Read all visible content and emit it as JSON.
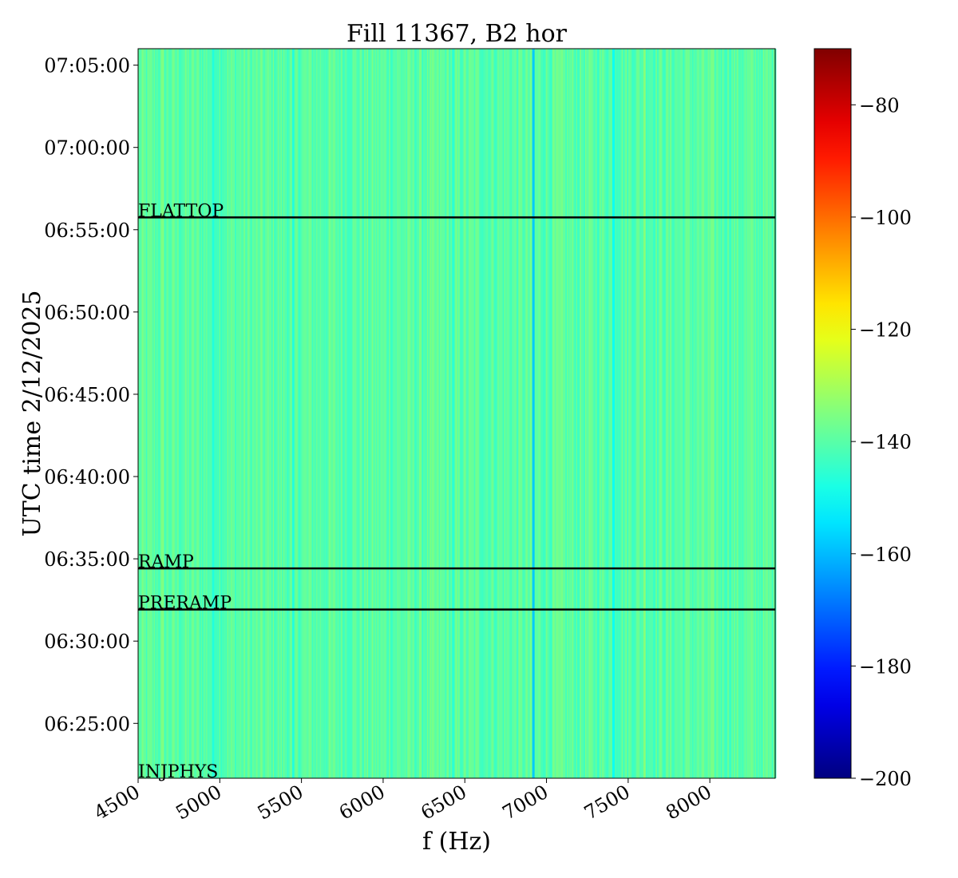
{
  "chart_data": {
    "type": "heatmap",
    "title": "Fill 11367, B2 hor",
    "xlabel": "f (Hz)",
    "ylabel": "UTC time 2/12/2025",
    "xlim": [
      4500,
      8400
    ],
    "ylim": [
      "06:21:40",
      "07:06:00"
    ],
    "x_ticks": [
      4500,
      5000,
      5500,
      6000,
      6500,
      7000,
      7500,
      8000
    ],
    "y_ticks": [
      "06:25:00",
      "06:30:00",
      "06:35:00",
      "06:40:00",
      "06:45:00",
      "06:50:00",
      "06:55:00",
      "07:00:00",
      "07:05:00"
    ],
    "colorbar": {
      "colormap": "jet",
      "range": [
        -200,
        -70
      ],
      "ticks": [
        -80,
        -100,
        -120,
        -140,
        -160,
        -180,
        -200
      ]
    },
    "typical_value": -140,
    "strong_lines_hz": [
      {
        "f": 6920,
        "value": -158
      },
      {
        "f": 7410,
        "value": -150
      },
      {
        "f": 4960,
        "value": -147
      },
      {
        "f": 5450,
        "value": -147
      },
      {
        "f": 6430,
        "value": -146
      },
      {
        "f": 4650,
        "value": -135
      },
      {
        "f": 7600,
        "value": -134
      }
    ],
    "events": [
      {
        "label": "INJPHYS",
        "time": "06:21:40"
      },
      {
        "label": "PRERAMP",
        "time": "06:31:55"
      },
      {
        "label": "RAMP",
        "time": "06:34:25"
      },
      {
        "label": "FLATTOP",
        "time": "06:55:45"
      }
    ]
  }
}
